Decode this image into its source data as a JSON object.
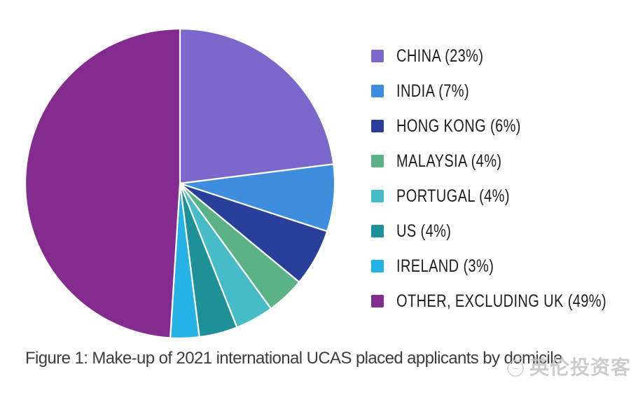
{
  "chart_data": {
    "type": "pie",
    "caption": "Figure 1: Make-up of 2021 international UCAS placed applicants by domicile",
    "start_angle_deg": 0,
    "direction": "clockwise",
    "legend_position": "right",
    "slice_border_color": "#FFFFFF",
    "center": {
      "x": 257,
      "y": 262
    },
    "radius": 221,
    "series": [
      {
        "label": "CHINA",
        "value": 23,
        "display": "CHINA (23%)",
        "color": "#7A69CB"
      },
      {
        "label": "INDIA",
        "value": 7,
        "display": "INDIA (7%)",
        "color": "#3E8EDD"
      },
      {
        "label": "HONG KONG",
        "value": 6,
        "display": "HONG KONG (6%)",
        "color": "#28409A"
      },
      {
        "label": "MALAYSIA",
        "value": 4,
        "display": "MALAYSIA (4%)",
        "color": "#5BB286"
      },
      {
        "label": "PORTUGAL",
        "value": 4,
        "display": "PORTUGAL (4%)",
        "color": "#46BDC6"
      },
      {
        "label": "US",
        "value": 4,
        "display": "US (4%)",
        "color": "#1E9097"
      },
      {
        "label": "IRELAND",
        "value": 3,
        "display": "IRELAND (3%)",
        "color": "#25B2E4"
      },
      {
        "label": "OTHER, EXCLUDING UK",
        "value": 49,
        "display": "OTHER, EXCLUDING UK (49%)",
        "color": "#832B8F"
      }
    ]
  },
  "watermark": {
    "text": "英伦投资客",
    "icon": "mascot-circle-icon",
    "color": "#C4C4C4"
  }
}
